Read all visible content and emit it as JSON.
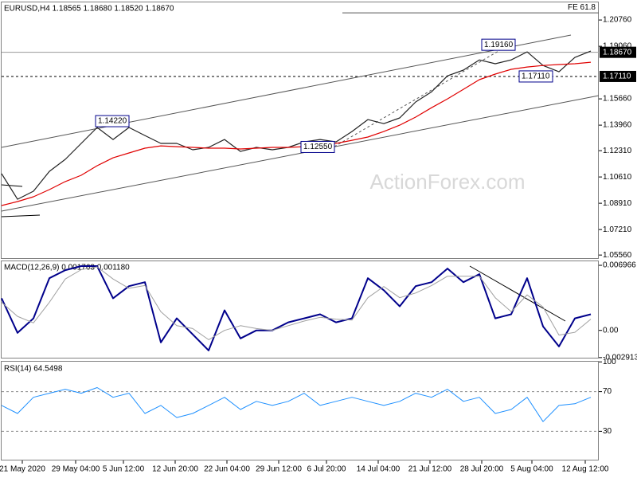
{
  "chart_data": [
    {
      "type": "line",
      "title": "EURUSD,H4  1.18565 1.18680 1.18520 1.18670",
      "watermark": "ActionForex.com",
      "xlim": [
        0,
        37.5
      ],
      "ylim": [
        1.0531,
        1.2195
      ],
      "yticks": [
        {
          "value": 1.2076,
          "label": "1.20760"
        },
        {
          "value": 1.1906,
          "label": "1.19060"
        },
        {
          "value": 1.1566,
          "label": "1.15660"
        },
        {
          "value": 1.1396,
          "label": "1.13960"
        },
        {
          "value": 1.1231,
          "label": "1.12310"
        },
        {
          "value": 1.1061,
          "label": "1.10610"
        },
        {
          "value": 1.0891,
          "label": "1.08910"
        },
        {
          "value": 1.0721,
          "label": "1.07210"
        },
        {
          "value": 1.0556,
          "label": "1.05560"
        }
      ],
      "series": [
        {
          "color": "#222222",
          "values": [
            1.1082,
            1.0917,
            1.0969,
            1.1097,
            1.1175,
            1.1278,
            1.1381,
            1.1303,
            1.1381,
            1.1329,
            1.1278,
            1.1278,
            1.1237,
            1.1252,
            1.1303,
            1.1226,
            1.1252,
            1.1237,
            1.1252,
            1.1288,
            1.1303,
            1.1288,
            1.1355,
            1.1432,
            1.1406,
            1.1443,
            1.1546,
            1.1612,
            1.1715,
            1.1752,
            1.1818,
            1.1793,
            1.1818,
            1.187,
            1.1782,
            1.1741,
            1.1834,
            1.1875
          ]
        },
        {
          "color": "#e00000",
          "values": [
            1.0876,
            1.0902,
            1.0933,
            1.0979,
            1.1031,
            1.1072,
            1.1134,
            1.1185,
            1.1216,
            1.1247,
            1.1262,
            1.1257,
            1.1252,
            1.1247,
            1.1247,
            1.1242,
            1.1247,
            1.1252,
            1.1252,
            1.1257,
            1.1262,
            1.1278,
            1.1298,
            1.1319,
            1.1355,
            1.1396,
            1.1448,
            1.1509,
            1.1566,
            1.1628,
            1.169,
            1.1726,
            1.1757,
            1.1772,
            1.1782,
            1.1788,
            1.1793,
            1.1803
          ]
        }
      ],
      "price_labels": [
        {
          "value": 1.1867,
          "label": "1.18670",
          "style": "solid"
        },
        {
          "value": 1.1711,
          "label": "1.17110",
          "style": "dashed"
        }
      ],
      "fe_line": {
        "label": "FE 61.8",
        "value": 1.2122,
        "x_start": 21.4
      },
      "annotations": [
        {
          "value": 1.1422,
          "label": "1.14220",
          "x": 5.9
        },
        {
          "value": 1.1255,
          "label": "1.12550",
          "x": 18.8
        },
        {
          "value": 1.1916,
          "label": "1.19160",
          "x": 30.15
        },
        {
          "value": 1.1711,
          "label": "1.17110",
          "x": 32.5
        }
      ]
    },
    {
      "type": "line",
      "title": "MACD(12,26,9) 0.001763 0.001180",
      "xlim": [
        0,
        37.5
      ],
      "ylim": [
        -0.00301,
        0.00748
      ],
      "yticks": [
        0.006966,
        {
          "value": 0,
          "label": "0.00"
        },
        -0.002913
      ],
      "series": [
        {
          "color": "#00008b",
          "width": 2,
          "values": [
            0.00344,
            -0.00026,
            0.00129,
            0.00559,
            0.00645,
            0.00688,
            0.00688,
            0.00344,
            0.00473,
            0.00516,
            -0.00129,
            0.00129,
            -0.00043,
            -0.00215,
            0.00215,
            -0.00086,
            0,
            0,
            0.00086,
            0.00129,
            0.00172,
            0.00086,
            0.00129,
            0.00559,
            0.0043,
            0.00258,
            0.00473,
            0.00516,
            0.00662,
            0.00516,
            0.00602,
            0.00129,
            0.00172,
            0.00559,
            0.00043,
            -0.00172,
            0.00129,
            0.00172
          ]
        },
        {
          "color": "#a0a0a0",
          "width": 1,
          "values": [
            0.003,
            0.0015,
            0.0008,
            0.003,
            0.0055,
            0.0065,
            0.0068,
            0.0055,
            0.0045,
            0.0048,
            0.002,
            0.0005,
            0.0002,
            -0.001,
            0,
            0.0005,
            0.0002,
            0,
            0.0005,
            0.001,
            0.0014,
            0.0012,
            0.0011,
            0.0035,
            0.0047,
            0.0035,
            0.004,
            0.0048,
            0.0058,
            0.0058,
            0.0058,
            0.0035,
            0.002,
            0.0038,
            0.0025,
            -0.0005,
            -0.0002,
            0.0012
          ]
        }
      ]
    },
    {
      "type": "line",
      "title": "RSI(14) 64.5498",
      "xlim": [
        0,
        37.5
      ],
      "ylim": [
        0.6,
        101
      ],
      "yticks": [
        100,
        70,
        30
      ],
      "levels": [
        70,
        30
      ],
      "xticks": [
        {
          "value": 1.3,
          "label": "21 May 2020"
        },
        {
          "value": 4.65,
          "label": "29 May 04:00"
        },
        {
          "value": 7.65,
          "label": "5 Jun 12:00"
        },
        {
          "value": 10.9,
          "label": "12 Jun 20:00"
        },
        {
          "value": 14.15,
          "label": "22 Jun 04:00"
        },
        {
          "value": 17.4,
          "label": "29 Jun 12:00"
        },
        {
          "value": 20.4,
          "label": "6 Jul 20:00"
        },
        {
          "value": 23.65,
          "label": "14 Jul 04:00"
        },
        {
          "value": 26.9,
          "label": "21 Jul 12:00"
        },
        {
          "value": 30.15,
          "label": "28 Jul 20:00"
        },
        {
          "value": 33.3,
          "label": "5 Aug 04:00"
        },
        {
          "value": 36.65,
          "label": "12 Aug 12:00"
        }
      ],
      "series": [
        {
          "color": "#1e90ff",
          "width": 1,
          "values": [
            56.1,
            48,
            64.3,
            68.4,
            72.4,
            68.4,
            74.1,
            64.3,
            68.4,
            48,
            56.1,
            43.9,
            48,
            56.1,
            64.3,
            52,
            60.2,
            56.1,
            60.2,
            68.4,
            56.1,
            60.2,
            64.3,
            60.2,
            56.1,
            60.2,
            68.4,
            64.3,
            72.4,
            60.2,
            64.3,
            48,
            52,
            64.3,
            39.8,
            56.1,
            57.8,
            64.3
          ]
        }
      ]
    }
  ]
}
